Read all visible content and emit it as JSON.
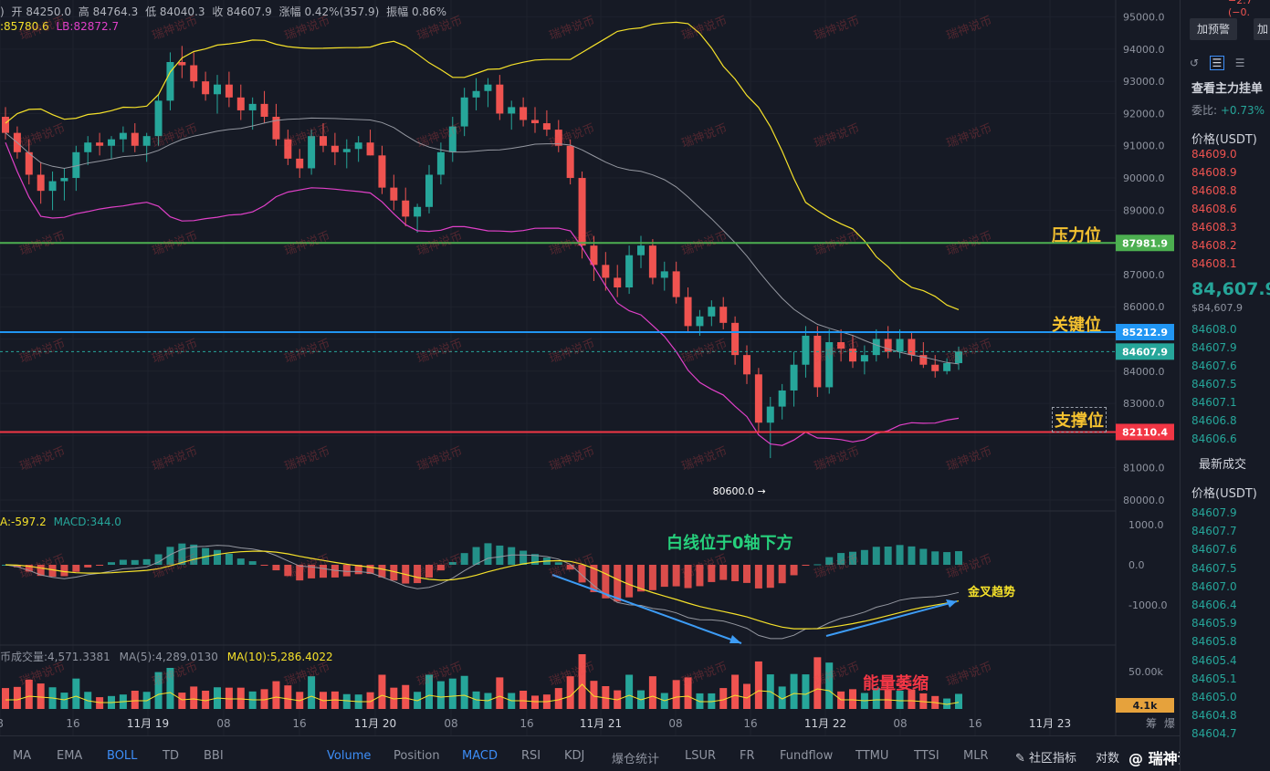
{
  "ohlc": {
    "open": "开 84250.0",
    "high": "高 84764.3",
    "low": "低 84040.3",
    "close": "收 84607.9",
    "change": "涨幅 0.42%(357.9)",
    "amp": "振幅 0.86%",
    "lead": ")"
  },
  "boll_text": {
    "ub": ":85780.6",
    "lb": "LB:82872.7"
  },
  "macd_text": {
    "dea": "A:-597.2",
    "macd": "MACD:344.0"
  },
  "vol_text": {
    "v": "币成交量:4,571.3381",
    "ma5": "MA(5):4,289.0130",
    "ma10": "MA(10):5,286.4022"
  },
  "price_axis": [
    "95000.0",
    "94000.0",
    "93000.0",
    "92000.0",
    "91000.0",
    "90000.0",
    "89000.0",
    "87000.0",
    "86000.0",
    "84000.0",
    "83000.0",
    "81000.0",
    "80000.0"
  ],
  "macd_axis": [
    "1000.0",
    "0.0",
    "-1000.0"
  ],
  "vol_axis": [
    "50.00k"
  ],
  "time_axis": [
    "8",
    "16",
    "11月 19",
    "08",
    "16",
    "11月 20",
    "08",
    "16",
    "11月 21",
    "08",
    "16",
    "11月 22",
    "08",
    "16",
    "11月 23",
    "筹",
    "爆"
  ],
  "levels": {
    "resistance": {
      "label": "压力位",
      "price": "87981.9",
      "value": 87981.9,
      "color": "#4caf50"
    },
    "key": {
      "label": "关键位",
      "price": "85212.9",
      "value": 85212.9,
      "color": "#2196f3"
    },
    "current": {
      "price": "84607.9",
      "value": 84607.9,
      "color": "#26a69a"
    },
    "support": {
      "label": "支撑位",
      "price": "82110.4",
      "value": 82110.4,
      "color": "#f23645"
    }
  },
  "low_marker": "80600.0",
  "annotations": {
    "white_line": "白线位于0轴下方",
    "golden_cross": "金叉趋势",
    "volume_shrink": "能量萎缩"
  },
  "vol_badge": "4.1k",
  "orderbook": {
    "top_partial": "−2.7 (−0.",
    "alert_btn": "加预警",
    "btn2": "加",
    "main_orders": "查看主力挂单",
    "ratio_label": "委比:",
    "ratio_value": "+0.73%",
    "price_header": "价格(USDT)",
    "asks": [
      "84609.0",
      "84608.9",
      "84608.8",
      "84608.6",
      "84608.3",
      "84608.2",
      "84608.1"
    ],
    "last_price": "84,607.9",
    "last_usd": "$84,607.9",
    "bids": [
      "84608.0",
      "84607.9",
      "84607.6",
      "84607.5",
      "84607.1",
      "84606.8",
      "84606.6"
    ],
    "trades_header": "最新成交",
    "trades_price_header": "价格(USDT)",
    "trades": [
      "84607.9",
      "84607.7",
      "84607.6",
      "84607.5",
      "84607.0",
      "84606.4",
      "84605.9",
      "84605.8",
      "84605.4",
      "84605.1",
      "84605.0",
      "84604.8",
      "84604.7"
    ]
  },
  "tabs": [
    "MA",
    "EMA",
    "BOLL",
    "TD",
    "BBI",
    "Volume",
    "Position",
    "MACD",
    "RSI",
    "KDJ",
    "爆仓统计",
    "LSUR",
    "FR",
    "Fundflow",
    "TTMU",
    "TTSI",
    "MLR"
  ],
  "active_tabs": [
    "BOLL",
    "Volume",
    "MACD"
  ],
  "tab_right": {
    "community": "社区指标",
    "compare": "对数"
  },
  "brand": "@ 瑞神说币",
  "watermark": "瑞神说币",
  "colors": {
    "up": "#26a69a",
    "down": "#ef5350",
    "bg": "#161a25",
    "grid": "#1e222d",
    "boll_upper": "#f5e12a",
    "boll_mid": "#9598a1",
    "boll_lower": "#e040c8",
    "dif": "#9598a1",
    "dea": "#f5e12a"
  },
  "chart_data": {
    "type": "candlestick",
    "timeframe": "2h",
    "candles": [
      [
        91900,
        92200,
        91200,
        91400
      ],
      [
        91400,
        91600,
        90600,
        90800
      ],
      [
        90800,
        91200,
        89800,
        90100
      ],
      [
        90100,
        90500,
        89200,
        89600
      ],
      [
        89600,
        90200,
        89000,
        89900
      ],
      [
        89900,
        90300,
        89300,
        90000
      ],
      [
        90000,
        91000,
        89600,
        90800
      ],
      [
        90800,
        91300,
        90400,
        91100
      ],
      [
        91100,
        91400,
        90700,
        91000
      ],
      [
        91000,
        91300,
        90600,
        91200
      ],
      [
        91200,
        91600,
        90800,
        91400
      ],
      [
        91400,
        91700,
        90800,
        91000
      ],
      [
        91000,
        91400,
        90500,
        91300
      ],
      [
        91300,
        92600,
        91000,
        92400
      ],
      [
        92400,
        93900,
        92100,
        93600
      ],
      [
        93600,
        94100,
        93100,
        93500
      ],
      [
        93500,
        93900,
        92800,
        93000
      ],
      [
        93000,
        93300,
        92400,
        92600
      ],
      [
        92600,
        93200,
        92000,
        92900
      ],
      [
        92900,
        93300,
        92200,
        92500
      ],
      [
        92500,
        92900,
        91800,
        92100
      ],
      [
        92100,
        92500,
        91500,
        92300
      ],
      [
        92300,
        92700,
        91700,
        91900
      ],
      [
        91900,
        92300,
        91000,
        91200
      ],
      [
        91200,
        91500,
        90400,
        90600
      ],
      [
        90600,
        90900,
        90000,
        90300
      ],
      [
        90300,
        91500,
        90100,
        91300
      ],
      [
        91300,
        91700,
        90800,
        91000
      ],
      [
        91000,
        91400,
        90400,
        90800
      ],
      [
        90800,
        91200,
        90300,
        90900
      ],
      [
        90900,
        91300,
        90500,
        91100
      ],
      [
        91100,
        91500,
        90700,
        90700
      ],
      [
        90700,
        91000,
        89500,
        89700
      ],
      [
        89700,
        90100,
        89000,
        89300
      ],
      [
        89300,
        89700,
        88500,
        88800
      ],
      [
        88800,
        89200,
        88300,
        89100
      ],
      [
        89100,
        90400,
        88900,
        90100
      ],
      [
        90100,
        91100,
        89800,
        90800
      ],
      [
        90800,
        91900,
        90500,
        91600
      ],
      [
        91600,
        92800,
        91300,
        92500
      ],
      [
        92500,
        93100,
        92100,
        92700
      ],
      [
        92700,
        93100,
        92200,
        92900
      ],
      [
        92900,
        93200,
        91800,
        92000
      ],
      [
        92000,
        92400,
        91500,
        92200
      ],
      [
        92200,
        92500,
        91600,
        91800
      ],
      [
        91800,
        92200,
        91400,
        91700
      ],
      [
        91700,
        92100,
        91300,
        91500
      ],
      [
        91500,
        91800,
        90800,
        91000
      ],
      [
        91000,
        91200,
        89800,
        90000
      ],
      [
        90000,
        90200,
        87500,
        87900
      ],
      [
        87900,
        88200,
        86800,
        87300
      ],
      [
        87300,
        87700,
        86500,
        86900
      ],
      [
        86900,
        87300,
        86300,
        86600
      ],
      [
        86600,
        87900,
        86400,
        87600
      ],
      [
        87600,
        88200,
        87200,
        87900
      ],
      [
        87900,
        88100,
        86700,
        86900
      ],
      [
        86900,
        87400,
        86500,
        87100
      ],
      [
        87100,
        87400,
        86100,
        86300
      ],
      [
        86300,
        86600,
        85200,
        85400
      ],
      [
        85400,
        85900,
        85100,
        85700
      ],
      [
        85700,
        86200,
        85400,
        86000
      ],
      [
        86000,
        86300,
        85300,
        85500
      ],
      [
        85500,
        85700,
        84200,
        84500
      ],
      [
        84500,
        84800,
        83600,
        83900
      ],
      [
        83900,
        84100,
        82100,
        82400
      ],
      [
        82400,
        83200,
        81300,
        82900
      ],
      [
        82900,
        83600,
        82500,
        83400
      ],
      [
        83400,
        84600,
        82900,
        84200
      ],
      [
        84200,
        85400,
        83800,
        85100
      ],
      [
        85100,
        85400,
        83200,
        83500
      ],
      [
        83500,
        85300,
        83300,
        84900
      ],
      [
        84900,
        85300,
        84300,
        84700
      ],
      [
        84700,
        85100,
        84100,
        84300
      ],
      [
        84300,
        84800,
        83900,
        84500
      ],
      [
        84500,
        85300,
        84300,
        85000
      ],
      [
        85000,
        85400,
        84400,
        84600
      ],
      [
        84600,
        85300,
        84400,
        85000
      ],
      [
        85000,
        85200,
        84300,
        84500
      ],
      [
        84500,
        84900,
        84100,
        84200
      ],
      [
        84200,
        84500,
        83800,
        84000
      ],
      [
        84000,
        84400,
        83900,
        84250
      ],
      [
        84250,
        84764,
        84040,
        84608
      ]
    ],
    "bollinger": {
      "upper_last": 85780.6,
      "lower_last": 82872.7
    },
    "macd": {
      "dea_last": -597.2,
      "macd_last": 344.0
    },
    "volume": {
      "last": 4571.3381,
      "ma5": 4289.013,
      "ma10": 5286.4022
    },
    "ylim": [
      79800,
      95300
    ]
  }
}
